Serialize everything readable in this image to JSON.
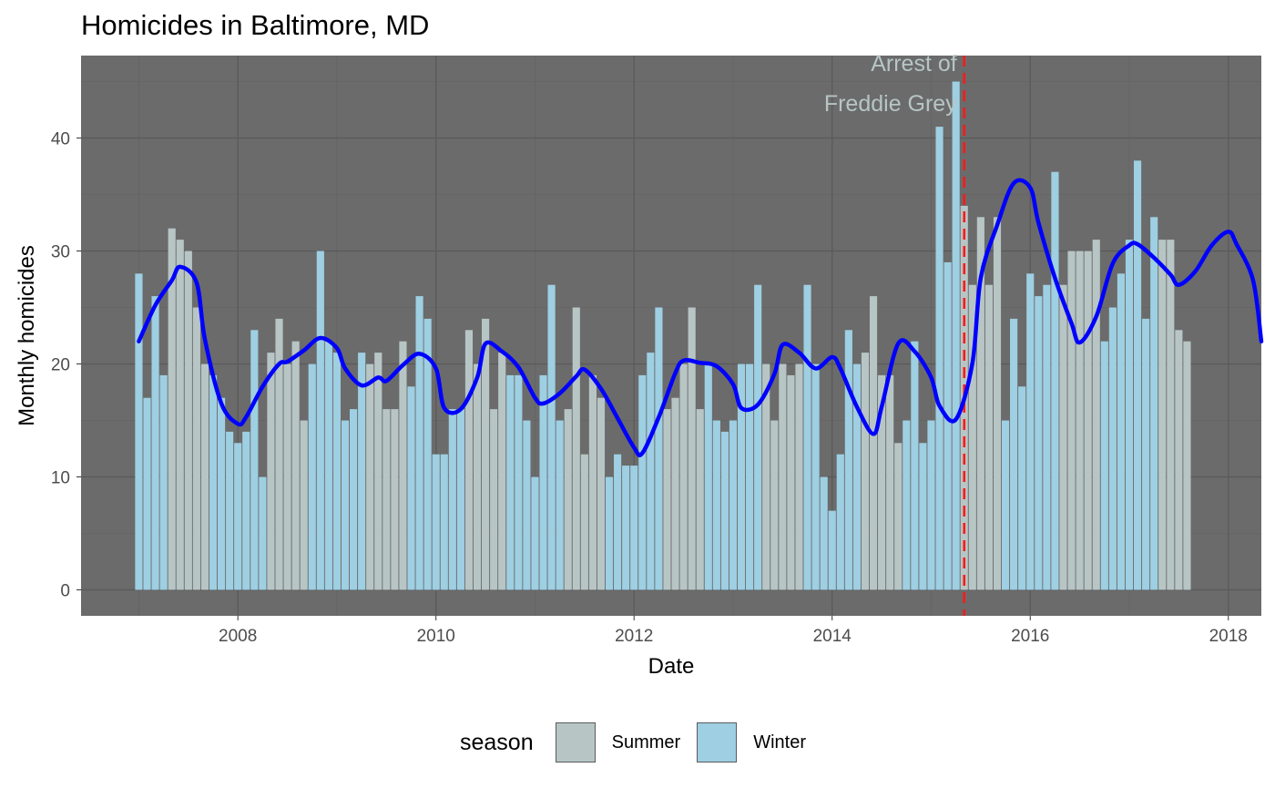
{
  "chart_data": {
    "type": "bar",
    "title": "Homicides in Baltimore, MD",
    "xlabel": "Date",
    "ylabel": "Monthly homicides",
    "x_start": "2007-01",
    "x_frequency": "monthly",
    "xlim": [
      "2006-06",
      "2018-05"
    ],
    "ylim": [
      -2.3,
      47.3
    ],
    "y_ticks": [
      0,
      10,
      20,
      30,
      40
    ],
    "x_ticks": [
      {
        "date": "2008-01",
        "label": "2008"
      },
      {
        "date": "2010-01",
        "label": "2010"
      },
      {
        "date": "2012-01",
        "label": "2012"
      },
      {
        "date": "2014-01",
        "label": "2014"
      },
      {
        "date": "2016-01",
        "label": "2016"
      },
      {
        "date": "2018-01",
        "label": "2018"
      }
    ],
    "grid": true,
    "panel_background": "#6b6b6b",
    "legend": {
      "title": "season",
      "position": "bottom",
      "entries": [
        {
          "label": "Summer",
          "color": "#b7c5c5"
        },
        {
          "label": "Winter",
          "color": "#9ecfe2"
        }
      ]
    },
    "values": [
      28,
      17,
      26,
      19,
      32,
      31,
      30,
      25,
      20,
      19,
      17,
      14,
      13,
      14,
      23,
      10,
      21,
      24,
      20,
      22,
      15,
      20,
      30,
      22,
      21,
      15,
      16,
      21,
      20,
      21,
      16,
      16,
      22,
      18,
      26,
      24,
      12,
      12,
      16,
      16,
      23,
      20,
      24,
      16,
      21,
      19,
      19,
      15,
      10,
      19,
      27,
      15,
      16,
      25,
      12,
      19,
      17,
      10,
      12,
      11,
      11,
      19,
      21,
      25,
      16,
      17,
      20,
      25,
      16,
      20,
      15,
      14,
      15,
      20,
      20,
      27,
      20,
      15,
      20,
      19,
      20,
      27,
      20,
      10,
      7,
      12,
      23,
      20,
      21,
      26,
      19,
      19,
      13,
      15,
      22,
      13,
      15,
      41,
      29,
      45,
      34,
      27,
      33,
      27,
      33,
      15,
      24,
      18,
      28,
      26,
      27,
      37,
      27,
      30,
      30,
      30,
      31,
      22,
      25,
      28,
      31,
      38,
      24,
      33,
      31,
      31,
      23,
      22
    ],
    "seasons": [
      "W",
      "W",
      "W",
      "W",
      "S",
      "S",
      "S",
      "S",
      "S",
      "W",
      "W",
      "W",
      "W",
      "W",
      "W",
      "W",
      "S",
      "S",
      "S",
      "S",
      "S",
      "W",
      "W",
      "W",
      "W",
      "W",
      "W",
      "W",
      "S",
      "S",
      "S",
      "S",
      "S",
      "W",
      "W",
      "W",
      "W",
      "W",
      "W",
      "W",
      "S",
      "S",
      "S",
      "S",
      "S",
      "W",
      "W",
      "W",
      "W",
      "W",
      "W",
      "W",
      "S",
      "S",
      "S",
      "S",
      "S",
      "W",
      "W",
      "W",
      "W",
      "W",
      "W",
      "W",
      "S",
      "S",
      "S",
      "S",
      "S",
      "W",
      "W",
      "W",
      "W",
      "W",
      "W",
      "W",
      "S",
      "S",
      "S",
      "S",
      "S",
      "W",
      "W",
      "W",
      "W",
      "W",
      "W",
      "W",
      "S",
      "S",
      "S",
      "S",
      "S",
      "W",
      "W",
      "W",
      "W",
      "W",
      "W",
      "W",
      "S",
      "S",
      "S",
      "S",
      "S",
      "W",
      "W",
      "W",
      "W",
      "W",
      "W",
      "W",
      "S",
      "S",
      "S",
      "S",
      "S",
      "W",
      "W",
      "W",
      "W",
      "W",
      "W",
      "W",
      "S",
      "S",
      "S",
      "S"
    ],
    "smooth_line": {
      "color": "#0000ff",
      "points": [
        [
          "2007-01",
          22.0
        ],
        [
          "2007-03",
          25.2
        ],
        [
          "2007-05",
          27.4
        ],
        [
          "2007-06",
          28.6
        ],
        [
          "2007-08",
          27.2
        ],
        [
          "2007-09",
          22.2
        ],
        [
          "2007-11",
          16.5
        ],
        [
          "2008-01",
          14.7
        ],
        [
          "2008-02",
          15.3
        ],
        [
          "2008-04",
          18.0
        ],
        [
          "2008-06",
          20.0
        ],
        [
          "2008-07",
          20.2
        ],
        [
          "2008-09",
          21.2
        ],
        [
          "2008-11",
          22.3
        ],
        [
          "2009-01",
          21.4
        ],
        [
          "2009-02",
          19.6
        ],
        [
          "2009-04",
          18.1
        ],
        [
          "2009-06",
          18.8
        ],
        [
          "2009-07",
          18.5
        ],
        [
          "2009-09",
          19.9
        ],
        [
          "2009-11",
          20.9
        ],
        [
          "2010-01",
          19.6
        ],
        [
          "2010-02",
          16.1
        ],
        [
          "2010-04",
          16.0
        ],
        [
          "2010-06",
          18.8
        ],
        [
          "2010-07",
          21.8
        ],
        [
          "2010-09",
          21.1
        ],
        [
          "2010-11",
          19.7
        ],
        [
          "2011-01",
          17.0
        ],
        [
          "2011-02",
          16.5
        ],
        [
          "2011-04",
          17.4
        ],
        [
          "2011-06",
          18.9
        ],
        [
          "2011-07",
          19.5
        ],
        [
          "2011-09",
          17.8
        ],
        [
          "2011-11",
          15.2
        ],
        [
          "2012-01",
          12.6
        ],
        [
          "2012-02",
          12.1
        ],
        [
          "2012-04",
          15.3
        ],
        [
          "2012-06",
          19.2
        ],
        [
          "2012-07",
          20.3
        ],
        [
          "2012-09",
          20.1
        ],
        [
          "2012-11",
          19.8
        ],
        [
          "2013-01",
          18.2
        ],
        [
          "2013-02",
          16.1
        ],
        [
          "2013-04",
          16.4
        ],
        [
          "2013-06",
          19.1
        ],
        [
          "2013-07",
          21.7
        ],
        [
          "2013-09",
          21.0
        ],
        [
          "2013-11",
          19.6
        ],
        [
          "2014-01",
          20.6
        ],
        [
          "2014-02",
          19.6
        ],
        [
          "2014-04",
          16.2
        ],
        [
          "2014-06",
          13.8
        ],
        [
          "2014-07",
          16.2
        ],
        [
          "2014-09",
          21.8
        ],
        [
          "2014-11",
          21.1
        ],
        [
          "2015-01",
          18.8
        ],
        [
          "2015-02",
          16.3
        ],
        [
          "2015-04",
          15.1
        ],
        [
          "2015-06",
          20.1
        ],
        [
          "2015-07",
          27.6
        ],
        [
          "2015-09",
          32.3
        ],
        [
          "2015-11",
          36.0
        ],
        [
          "2016-01",
          35.6
        ],
        [
          "2016-02",
          32.5
        ],
        [
          "2016-04",
          27.6
        ],
        [
          "2016-06",
          23.6
        ],
        [
          "2016-07",
          21.9
        ],
        [
          "2016-09",
          24.2
        ],
        [
          "2016-11",
          28.9
        ],
        [
          "2017-01",
          30.5
        ],
        [
          "2017-02",
          30.6
        ],
        [
          "2017-04",
          29.4
        ],
        [
          "2017-06",
          27.9
        ],
        [
          "2017-07",
          27.0
        ],
        [
          "2017-09",
          28.2
        ],
        [
          "2017-11",
          30.5
        ],
        [
          "2018-01",
          31.7
        ],
        [
          "2018-02",
          30.6
        ],
        [
          "2018-04",
          27.4
        ],
        [
          "2018-05",
          22.0
        ]
      ]
    },
    "vline": {
      "date": "2015-05",
      "color": "#ff1a1a",
      "style": "dashed"
    },
    "annotation": {
      "lines": [
        "Arrest of",
        "Freddie Grey"
      ],
      "color": "#b7c5c5"
    }
  }
}
